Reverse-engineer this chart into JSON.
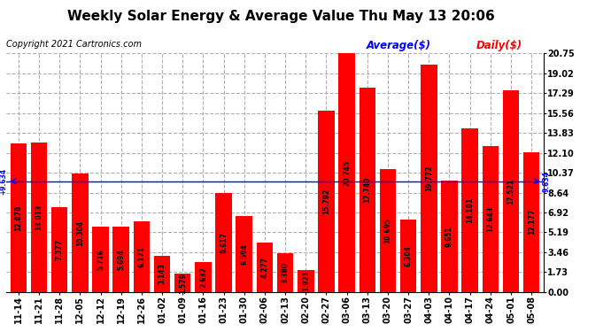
{
  "title": "Weekly Solar Energy & Average Value Thu May 13 20:06",
  "copyright": "Copyright 2021 Cartronics.com",
  "legend_avg": "Average($)",
  "legend_daily": "Daily($)",
  "categories": [
    "11-14",
    "11-21",
    "11-28",
    "12-05",
    "12-12",
    "12-19",
    "12-26",
    "01-02",
    "01-09",
    "01-16",
    "01-23",
    "01-30",
    "02-06",
    "02-13",
    "02-20",
    "02-27",
    "03-06",
    "03-13",
    "03-20",
    "03-27",
    "04-03",
    "04-10",
    "04-17",
    "04-24",
    "05-01",
    "05-08"
  ],
  "values": [
    12.878,
    13.013,
    7.377,
    10.304,
    5.716,
    5.694,
    6.171,
    3.143,
    1.579,
    2.632,
    8.617,
    6.594,
    4.277,
    3.38,
    1.921,
    15.792,
    20.745,
    17.74,
    10.695,
    6.304,
    19.772,
    9.651,
    14.181,
    12.643,
    17.521,
    12.177
  ],
  "average_value": 9.634,
  "bar_color": "#ff0000",
  "average_line_color": "#0000ff",
  "background_color": "#ffffff",
  "grid_color": "#b0b0b0",
  "ylim": [
    0,
    20.75
  ],
  "yticks": [
    0.0,
    1.73,
    3.46,
    5.19,
    6.92,
    8.64,
    10.37,
    12.1,
    13.83,
    15.56,
    17.29,
    19.02,
    20.75
  ],
  "bar_fontsize": 5.5,
  "axis_fontsize": 7.0,
  "title_fontsize": 11,
  "copyright_fontsize": 7.0,
  "legend_fontsize": 8.5
}
